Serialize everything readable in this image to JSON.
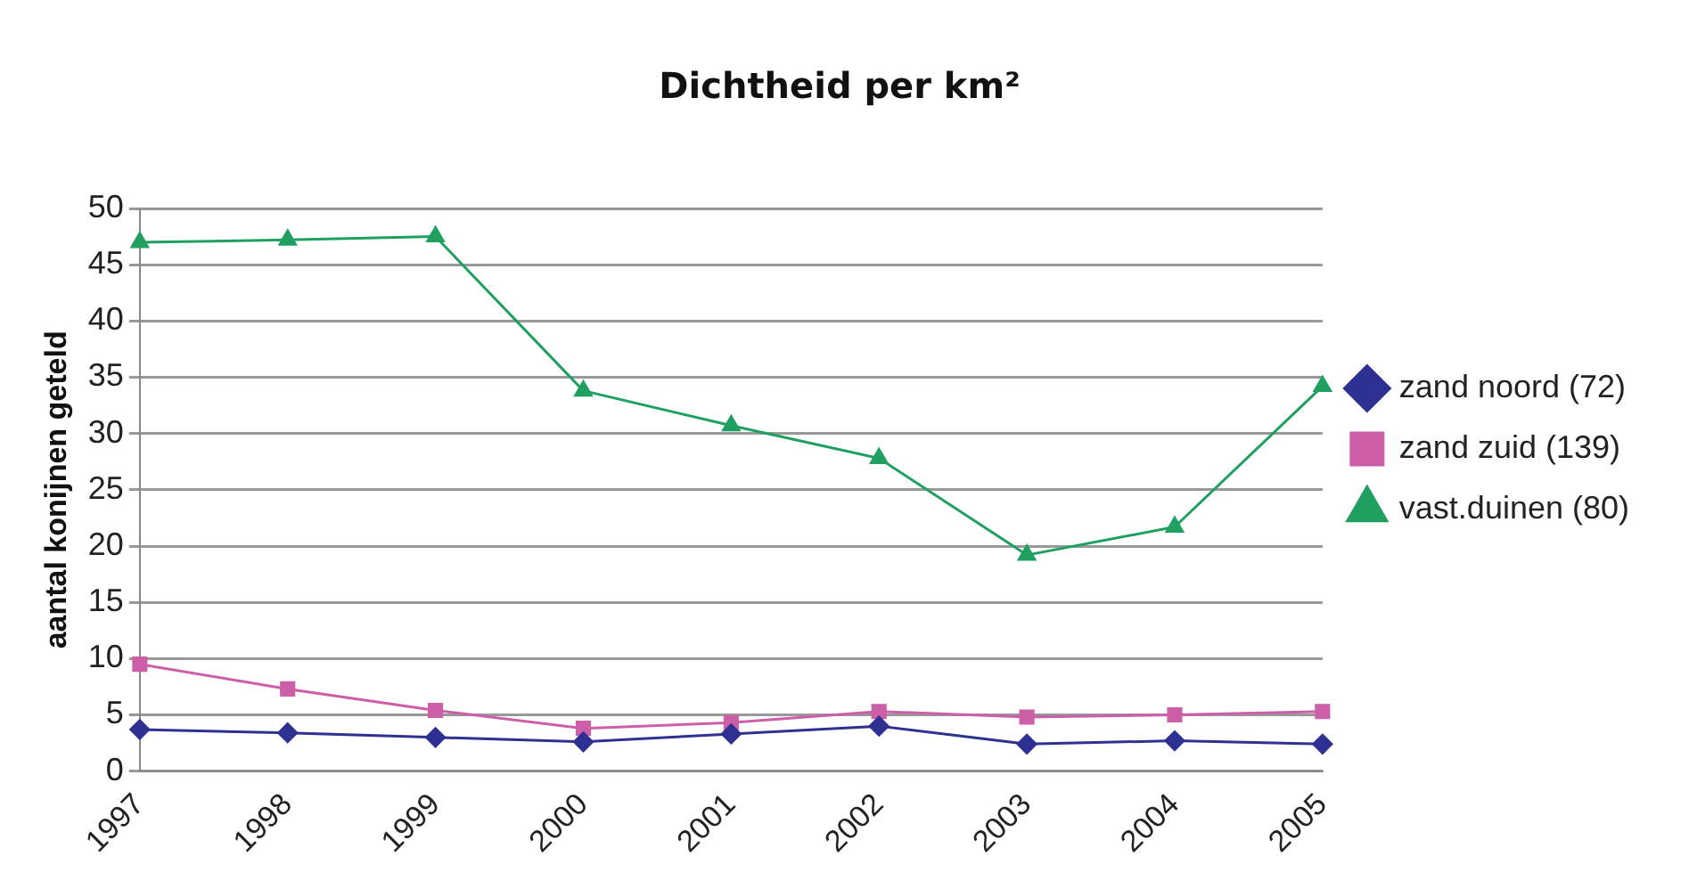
{
  "chart_data": {
    "type": "line",
    "title": "Dichtheid per km²",
    "ylabel": "aantal konijnen geteld",
    "categories": [
      "1997",
      "1998",
      "1999",
      "2000",
      "2001",
      "2002",
      "2003",
      "2004",
      "2005"
    ],
    "series": [
      {
        "name": "zand noord (72)",
        "color": "#2e3192",
        "marker": "diamond",
        "values": [
          3.7,
          3.4,
          3.0,
          2.6,
          3.3,
          4.0,
          2.4,
          2.7,
          2.4
        ]
      },
      {
        "name": "zand zuid (139)",
        "color": "#cc5fa8",
        "marker": "square",
        "values": [
          9.5,
          7.3,
          5.4,
          3.8,
          4.3,
          5.3,
          4.8,
          5.0,
          5.3
        ]
      },
      {
        "name": "vast.duinen (80)",
        "color": "#1fa060",
        "marker": "triangle",
        "values": [
          47,
          47.2,
          47.5,
          33.8,
          30.7,
          27.8,
          19.2,
          21.7,
          34.2
        ]
      }
    ],
    "ylim": [
      0,
      50
    ],
    "yticks": [
      0,
      5,
      10,
      15,
      20,
      25,
      30,
      35,
      40,
      45,
      50
    ],
    "grid": "y",
    "legend": "right"
  }
}
